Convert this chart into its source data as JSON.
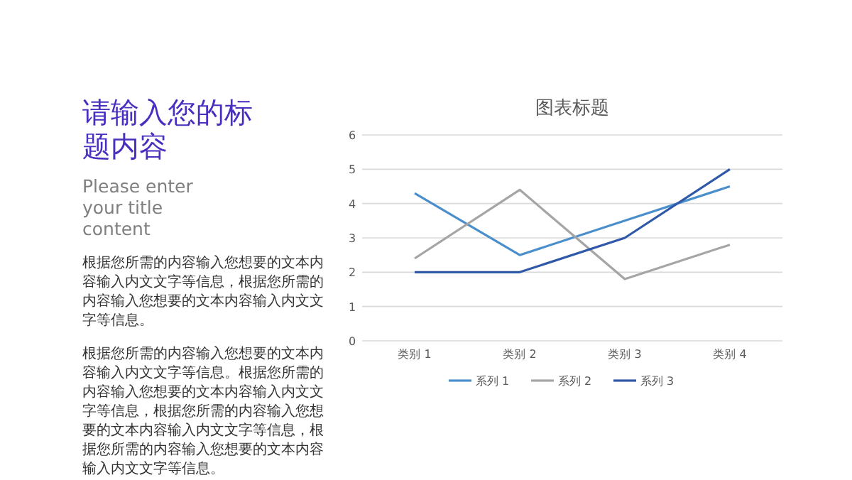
{
  "chart_data": {
    "type": "line",
    "title": "图表标题",
    "annotations": [
      "请输入您的标题内容",
      "Please enter your title content",
      "根据您所需的内容输入您想要的文本内容输入内文文字等信息，根据您所需的内容输入您想要的文本内容输入内文文字等信息。",
      "根据您所需的内容输入您想要的文本内容输入内文文字等信息。根据您所需的内容输入您想要的文本内容输入内文文字等信息，根据您所需的内容输入您想要的文本内容输入内文文字等信息，根据您所需的内容输入您想要的文本内容输入内文文字等信息。"
    ],
    "categories": [
      "类别 1",
      "类别 2",
      "类别 3",
      "类别 4"
    ],
    "series": [
      {
        "name": "系列 1",
        "color": "#4a8fcc",
        "values": [
          4.3,
          2.5,
          3.5,
          4.5
        ]
      },
      {
        "name": "系列 2",
        "color": "#a5a5a5",
        "values": [
          2.4,
          4.4,
          1.8,
          2.8
        ]
      },
      {
        "name": "系列 3",
        "color": "#2f59a8",
        "values": [
          2,
          2,
          3,
          5
        ]
      }
    ],
    "ylim": [
      0,
      6
    ],
    "yticks": [
      0,
      1,
      2,
      3,
      4,
      5,
      6
    ],
    "grid": "y",
    "legend": "bottom",
    "marker": "none",
    "line_style": "solid"
  }
}
